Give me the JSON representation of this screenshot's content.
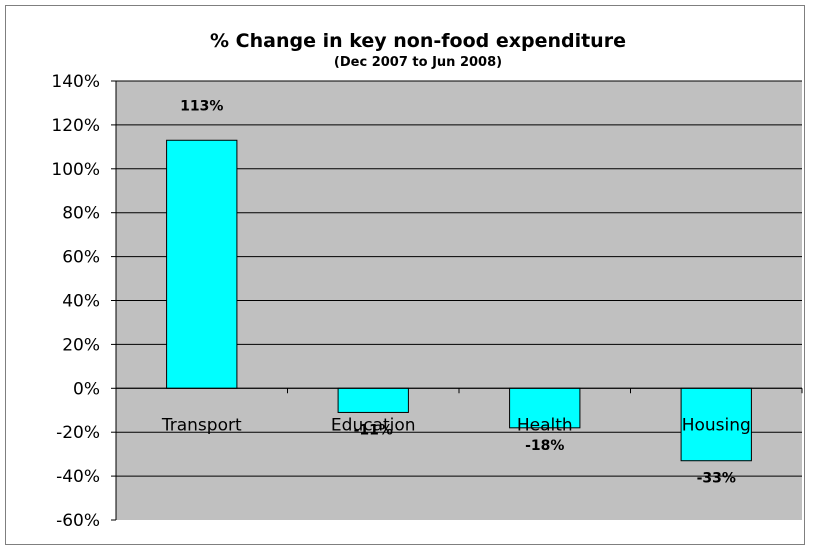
{
  "chart_data": {
    "type": "bar",
    "title": "% Change in key non-food expenditure",
    "subtitle": "(Dec 2007 to Jun 2008)",
    "categories": [
      "Transport",
      "Education",
      "Health",
      "Housing"
    ],
    "values": [
      113,
      -11,
      -18,
      -33
    ],
    "data_labels": [
      "113%",
      "-11%",
      "-18%",
      "-33%"
    ],
    "ylim": [
      -60,
      140
    ],
    "yticks": [
      140,
      120,
      100,
      80,
      60,
      40,
      20,
      0,
      -20,
      -40,
      -60
    ],
    "ytick_labels": [
      "140%",
      "120%",
      "100%",
      "80%",
      "60%",
      "40%",
      "20%",
      "0%",
      "-20%",
      "-40%",
      "-60%"
    ],
    "grid": true,
    "legend": "none",
    "colors": {
      "bar": "#00ffff",
      "plot_background": "#c0c0c0",
      "gridline": "#000000"
    }
  }
}
